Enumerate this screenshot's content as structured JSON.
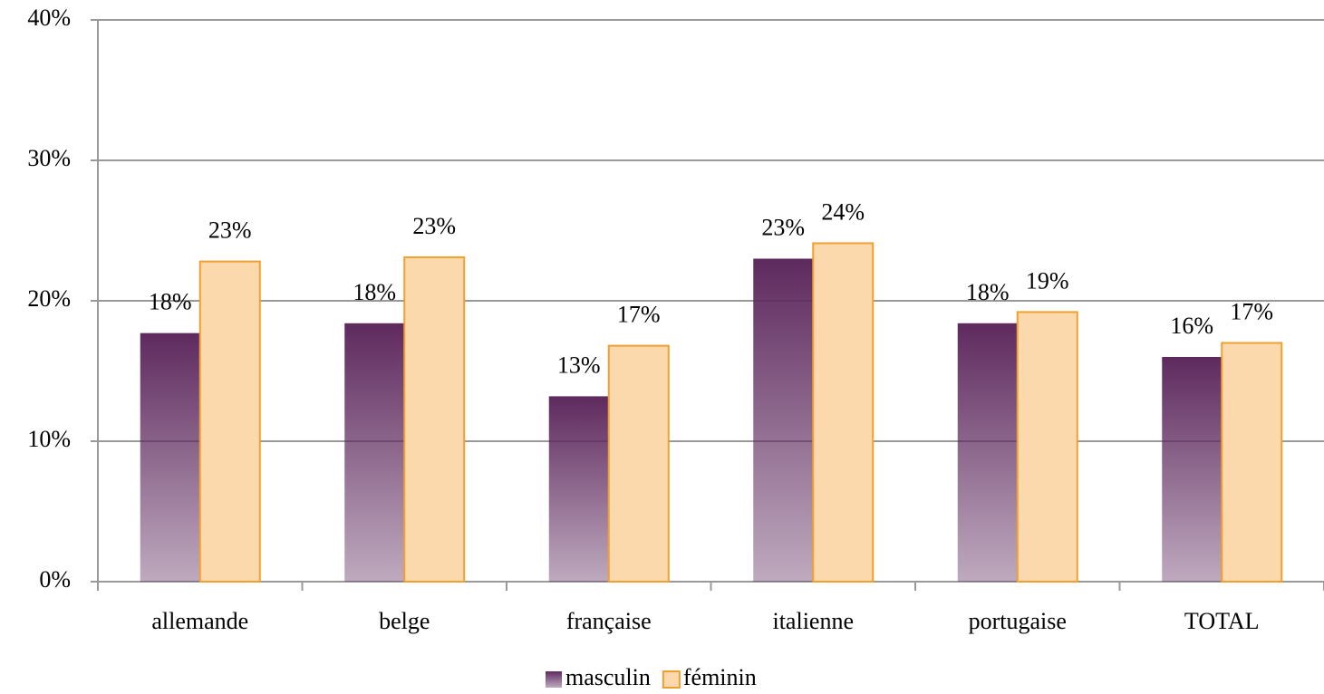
{
  "chart_data": {
    "type": "bar",
    "categories": [
      "allemande",
      "belge",
      "française",
      "italienne",
      "portugaise",
      "TOTAL"
    ],
    "series": [
      {
        "name": "masculin",
        "color": "#5e2a5e",
        "values": [
          17.7,
          18.4,
          13.2,
          23.0,
          18.4,
          16.0
        ],
        "value_labels": [
          "18%",
          "18%",
          "13%",
          "23%",
          "18%",
          "16%"
        ]
      },
      {
        "name": "féminin",
        "color": "#fcd9ad",
        "edge_color": "#f0a030",
        "values": [
          22.8,
          23.1,
          16.8,
          24.1,
          19.2,
          17.0
        ],
        "value_labels": [
          "23%",
          "23%",
          "17%",
          "24%",
          "19%",
          "17%"
        ]
      }
    ],
    "ylim": [
      0,
      40
    ],
    "yticks": [
      {
        "value": 0,
        "label": "0%"
      },
      {
        "value": 10,
        "label": "10%"
      },
      {
        "value": 20,
        "label": "20%"
      },
      {
        "value": 30,
        "label": "30%"
      },
      {
        "value": 40,
        "label": "40%"
      }
    ],
    "grid": true,
    "legend": "bottom"
  }
}
